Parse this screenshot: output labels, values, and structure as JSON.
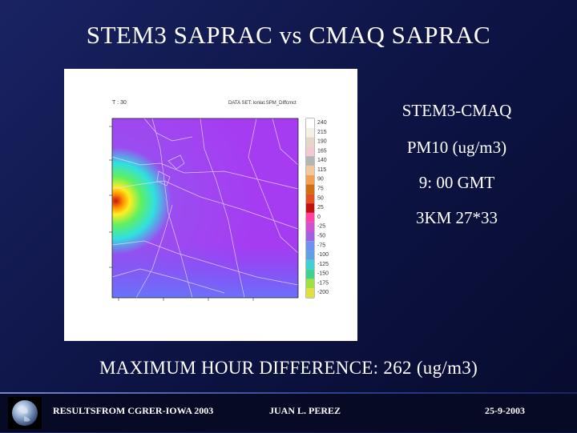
{
  "slide": {
    "title": "STEM3 SAPRAC vs CMAQ SAPRAC",
    "side_labels": [
      "STEM3-CMAQ",
      "PM10 (ug/m3)",
      "9: 00 GMT",
      "3KM 27*33"
    ],
    "max_difference": "MAXIMUM HOUR DIFFERENCE: 262  (ug/m3)"
  },
  "map": {
    "header_left": "T : 30",
    "header_center": "DATA SET: lonlat.SPM_Diffcmct",
    "colorbar_labels": [
      "240",
      "215",
      "190",
      "165",
      "140",
      "115",
      "90",
      "75",
      "50",
      "25",
      "0",
      "-25",
      "-50",
      "-75",
      "-100",
      "-125",
      "-150",
      "-175",
      "-200"
    ],
    "colorbar_colors": [
      "#ffffff",
      "#f5f0e6",
      "#e6d6c8",
      "#f2c8d2",
      "#b4b4b4",
      "#f0c8a0",
      "#f0a050",
      "#d07010",
      "#e05020",
      "#c01010",
      "#ff40a0",
      "#d050d0",
      "#a060e0",
      "#7090f0",
      "#60a0e0",
      "#40d0d0",
      "#40d090",
      "#a0e040",
      "#e0e040"
    ]
  },
  "footer": {
    "left": "RESULTSFROM CGRER-IOWA 2003",
    "center": "JUAN L. PEREZ",
    "right": "25-9-2003"
  },
  "icons": {
    "globe": "globe-icon"
  }
}
